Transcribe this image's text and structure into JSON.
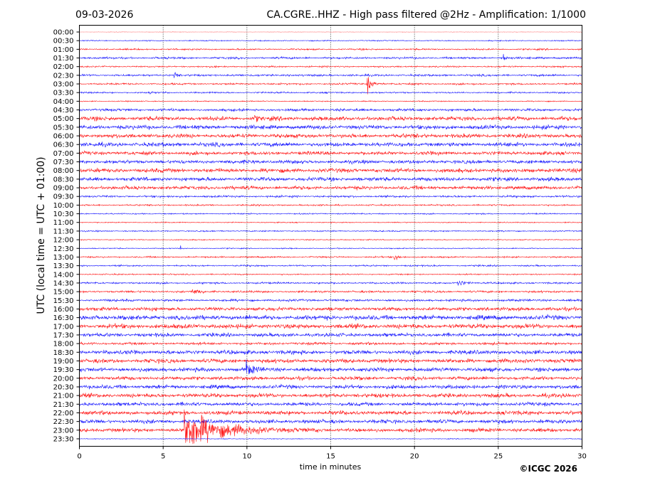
{
  "chart_data": {
    "type": "line",
    "date": "09-03-2026",
    "title": "CA.CGRE..HHZ - High pass filtered @2Hz - Amplification: 1/1000",
    "xlabel": "time in minutes",
    "ylabel": "UTC (local time = UTC + 01:00)",
    "copyright": "©ICGC 2026",
    "xlim": [
      0,
      30
    ],
    "x_ticks": [
      0,
      5,
      10,
      15,
      20,
      25,
      30
    ],
    "grid": "vertical dotted at x ticks",
    "colors": [
      "#ff0000",
      "#0000ff"
    ],
    "rows": [
      "00:00",
      "00:30",
      "01:00",
      "01:30",
      "02:00",
      "02:30",
      "03:00",
      "03:30",
      "04:00",
      "04:30",
      "05:00",
      "05:30",
      "06:00",
      "06:30",
      "07:00",
      "07:30",
      "08:00",
      "08:30",
      "09:00",
      "09:30",
      "10:00",
      "10:30",
      "11:00",
      "11:30",
      "12:00",
      "12:30",
      "13:00",
      "13:30",
      "14:00",
      "14:30",
      "15:00",
      "15:30",
      "16:00",
      "16:30",
      "17:00",
      "17:30",
      "18:00",
      "18:30",
      "19:00",
      "19:30",
      "20:00",
      "20:30",
      "21:00",
      "21:30",
      "22:00",
      "22:30",
      "23:00",
      "23:30"
    ],
    "noise_level": [
      0.2,
      0.4,
      0.6,
      0.8,
      0.6,
      0.8,
      0.7,
      0.6,
      0.4,
      1.0,
      1.6,
      1.6,
      1.6,
      1.6,
      1.4,
      1.4,
      1.6,
      1.5,
      1.4,
      0.8,
      0.6,
      0.5,
      0.4,
      0.5,
      0.4,
      0.4,
      0.6,
      0.6,
      0.5,
      0.7,
      0.8,
      0.9,
      1.4,
      1.8,
      1.8,
      1.4,
      1.0,
      1.6,
      1.6,
      1.6,
      1.4,
      1.5,
      1.6,
      1.4,
      1.6,
      1.5,
      1.5,
      0.3
    ],
    "events": [
      {
        "row": "01:30",
        "minute": 25.3,
        "amplitude": 4,
        "duration": 0.2
      },
      {
        "row": "02:30",
        "minute": 5.7,
        "amplitude": 3,
        "duration": 0.15
      },
      {
        "row": "03:00",
        "minute": 17.2,
        "amplitude": 7,
        "duration": 0.4
      },
      {
        "row": "03:30",
        "minute": 4.2,
        "amplitude": 2,
        "duration": 0.1
      },
      {
        "row": "05:00",
        "minute": 10.5,
        "amplitude": 3,
        "duration": 0.2
      },
      {
        "row": "12:30",
        "minute": 6.0,
        "amplitude": 2,
        "duration": 0.1
      },
      {
        "row": "13:00",
        "minute": 18.8,
        "amplitude": 3,
        "duration": 0.4
      },
      {
        "row": "14:30",
        "minute": 22.6,
        "amplitude": 3,
        "duration": 0.6
      },
      {
        "row": "15:00",
        "minute": 6.8,
        "amplitude": 2.5,
        "duration": 0.6
      },
      {
        "row": "19:30",
        "minute": 10.0,
        "amplitude": 7,
        "duration": 0.5
      },
      {
        "row": "23:00",
        "minute": 6.3,
        "amplitude": 20,
        "duration": 3.0
      }
    ]
  }
}
